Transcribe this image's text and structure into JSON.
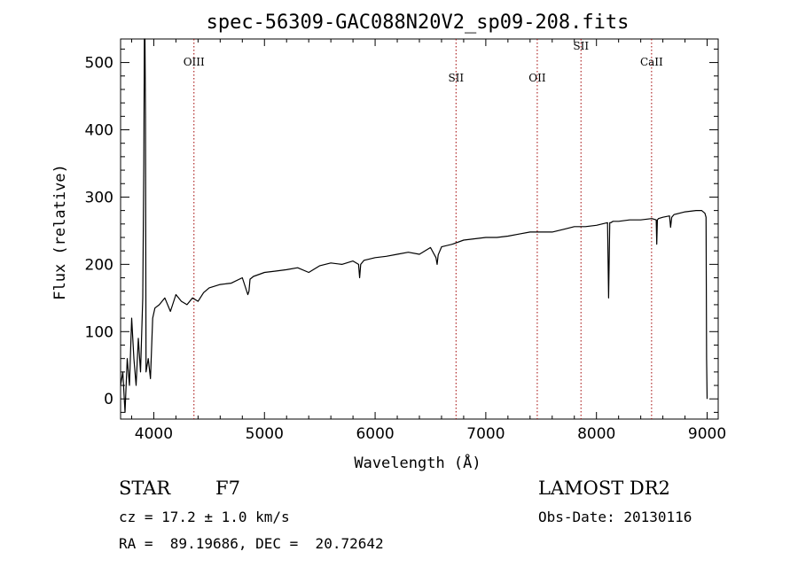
{
  "chart_data": {
    "type": "line",
    "title": "spec-56309-GAC088N20V2_sp09-208.fits",
    "xlabel": "Wavelength (Å)",
    "ylabel": "Flux (relative)",
    "xlim": [
      3700,
      9100
    ],
    "ylim": [
      -30,
      535
    ],
    "x_ticks": [
      4000,
      5000,
      6000,
      7000,
      8000,
      9000
    ],
    "y_ticks": [
      0,
      100,
      200,
      300,
      400,
      500
    ],
    "x_tick_labels": [
      "4000",
      "5000",
      "6000",
      "7000",
      "8000",
      "9000"
    ],
    "y_tick_labels": [
      "0",
      "100",
      "200",
      "300",
      "400",
      "500"
    ],
    "grid": false,
    "series": [
      {
        "color": "#000000",
        "x": [
          3700,
          3720,
          3740,
          3760,
          3780,
          3800,
          3820,
          3840,
          3860,
          3880,
          3900,
          3910,
          3915,
          3920,
          3925,
          3930,
          3950,
          3970,
          3990,
          4010,
          4050,
          4100,
          4150,
          4200,
          4250,
          4300,
          4350,
          4400,
          4450,
          4500,
          4600,
          4700,
          4800,
          4850,
          4860,
          4870,
          4900,
          5000,
          5100,
          5200,
          5300,
          5400,
          5500,
          5600,
          5700,
          5800,
          5850,
          5860,
          5870,
          5900,
          6000,
          6100,
          6200,
          6300,
          6400,
          6500,
          6550,
          6560,
          6570,
          6600,
          6700,
          6800,
          6900,
          7000,
          7100,
          7200,
          7300,
          7400,
          7500,
          7600,
          7700,
          7800,
          7900,
          8000,
          8050,
          8100,
          8110,
          8120,
          8130,
          8150,
          8200,
          8300,
          8400,
          8500,
          8540,
          8545,
          8550,
          8560,
          8600,
          8660,
          8670,
          8680,
          8700,
          8800,
          8900,
          8950,
          8980,
          8990,
          8995,
          9000
        ],
        "y": [
          20,
          40,
          -20,
          60,
          20,
          120,
          60,
          20,
          90,
          40,
          150,
          350,
          535,
          535,
          420,
          40,
          60,
          30,
          120,
          135,
          140,
          150,
          130,
          155,
          145,
          140,
          150,
          145,
          158,
          165,
          170,
          172,
          180,
          155,
          160,
          178,
          182,
          188,
          190,
          192,
          195,
          188,
          198,
          202,
          200,
          205,
          200,
          180,
          200,
          206,
          210,
          212,
          215,
          218,
          215,
          225,
          210,
          200,
          214,
          226,
          230,
          236,
          238,
          240,
          240,
          242,
          245,
          248,
          248,
          248,
          252,
          256,
          256,
          258,
          260,
          262,
          150,
          262,
          262,
          264,
          264,
          266,
          266,
          268,
          266,
          230,
          266,
          268,
          270,
          272,
          255,
          270,
          274,
          278,
          280,
          280,
          276,
          270,
          60,
          0
        ]
      }
    ],
    "annotations": [
      {
        "label": "OIII",
        "x": 4363
      },
      {
        "label": "SII",
        "x": 6731
      },
      {
        "label": "OII",
        "x": 7465
      },
      {
        "label": "SII",
        "x": 7860
      },
      {
        "label": "CaII",
        "x": 8498
      }
    ]
  },
  "info": {
    "object_type": "STAR",
    "subclass": "F7",
    "survey": "LAMOST DR2",
    "cz": "cz = 17.2 ± 1.0 km/s",
    "obs_date": "Obs-Date: 20130116",
    "coords": "RA =  89.19686, DEC =  20.72642"
  }
}
